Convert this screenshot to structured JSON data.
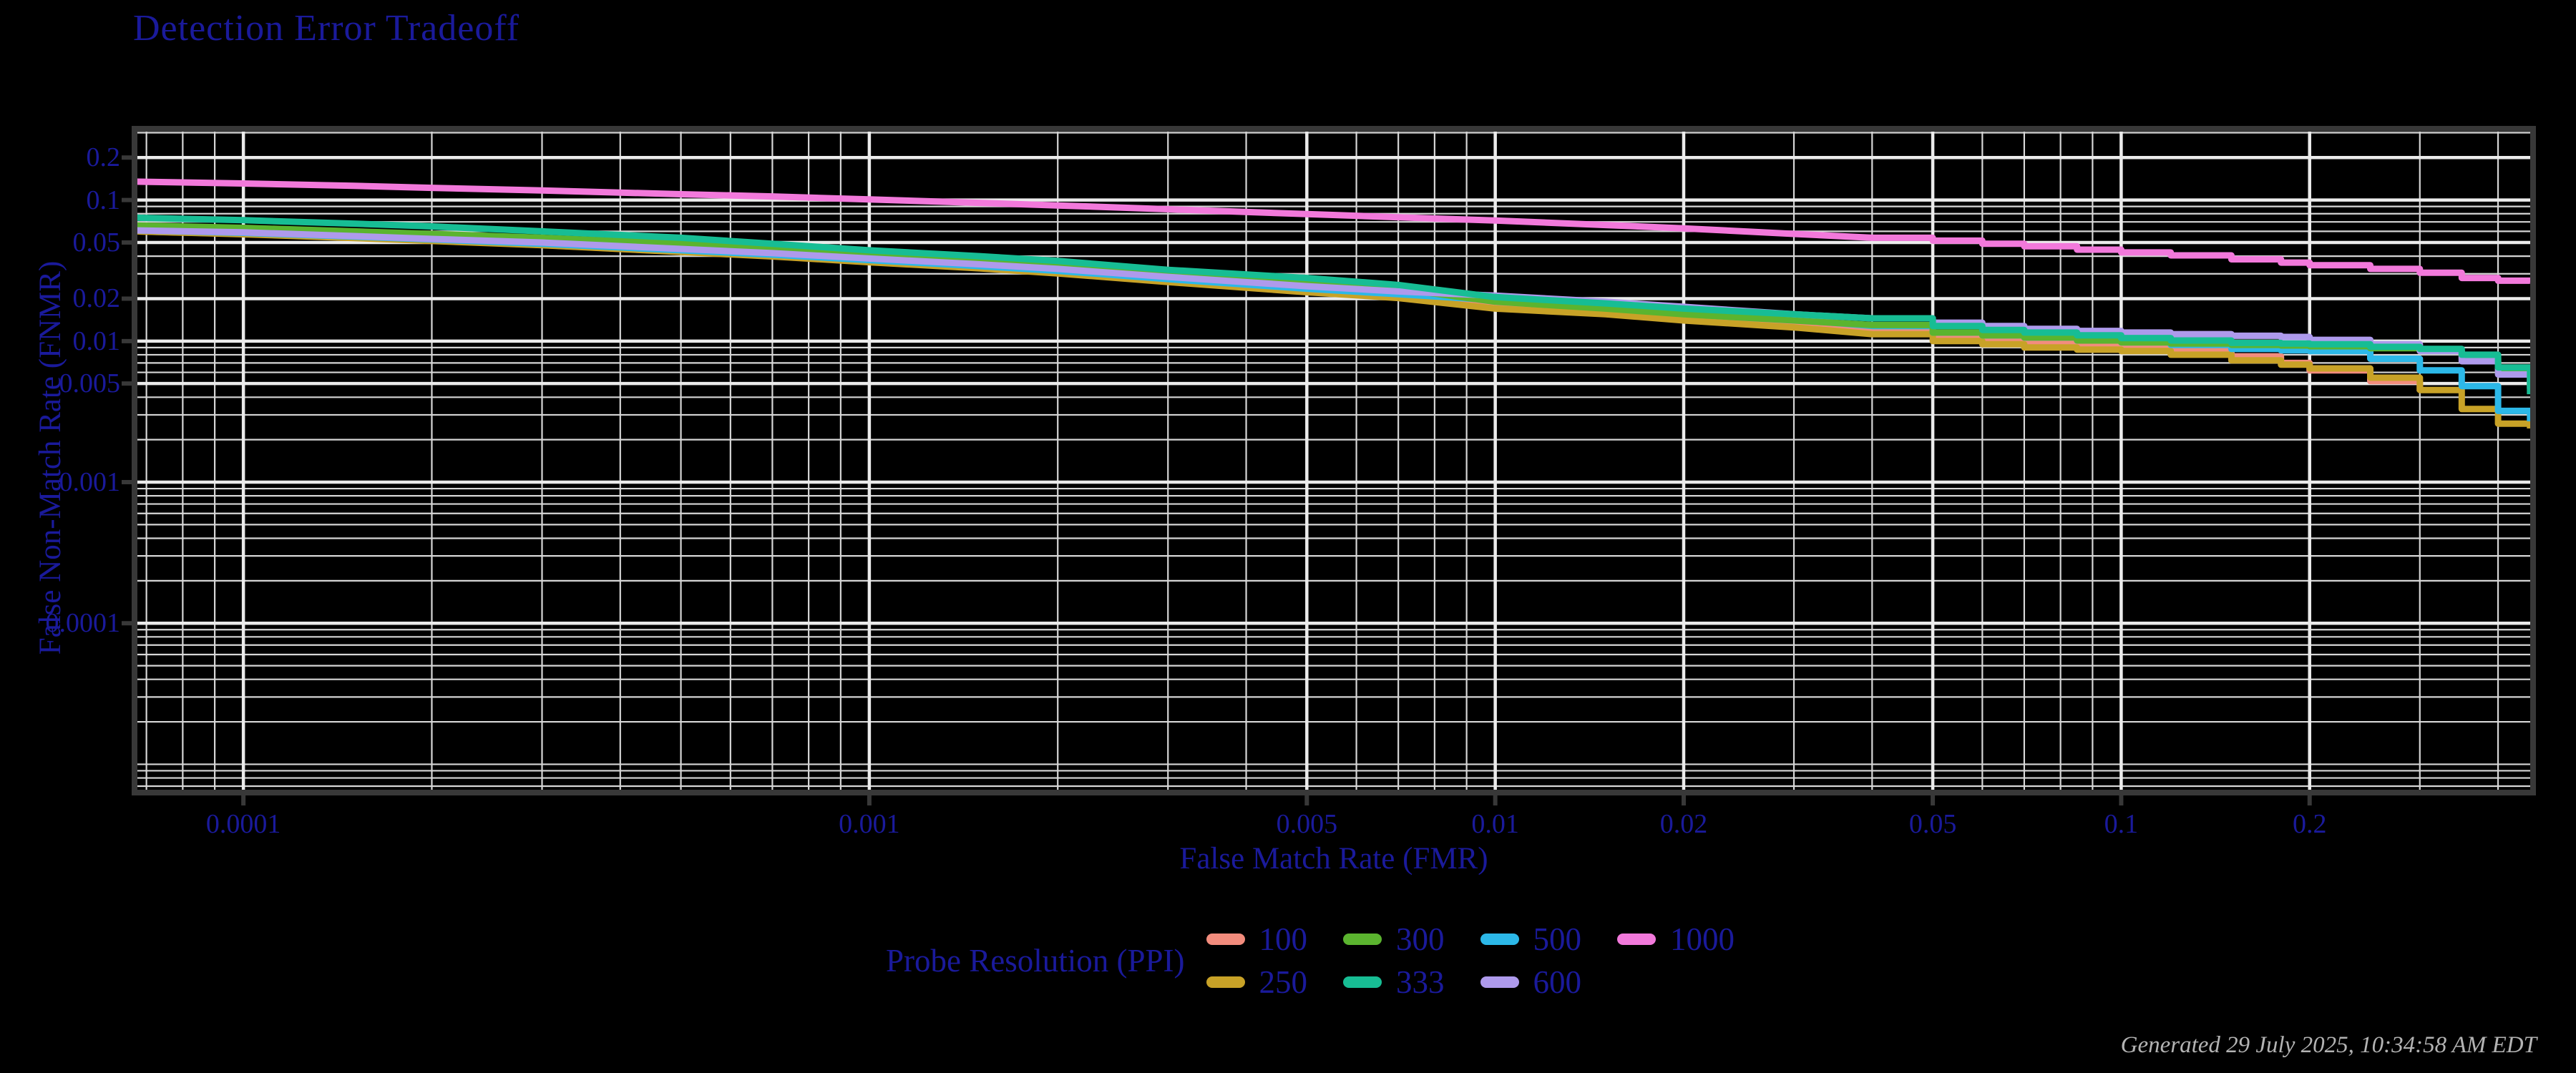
{
  "title": "Detection Error Tradeoff",
  "footer": {
    "generated": "Generated 29 July 2025, 10:34:58 AM EDT"
  },
  "colors": {
    "background": "#000000",
    "text": "#1A1A9B",
    "grid_major": "#EBEBEB",
    "grid_minor": "#D6D6D6",
    "spine": "#383838",
    "timestamp": "#B3B3B3"
  },
  "chart_data": {
    "type": "line",
    "title": "Detection Error Tradeoff",
    "xlabel": "False Match Rate (FMR)",
    "ylabel": "False Non-Match Rate (FNMR)",
    "legend_title": "Probe Resolution (PPI)",
    "legend_position": "bottom",
    "grid": "on",
    "x_scale": "log",
    "y_scale": "log",
    "xlim": [
      6.7e-05,
      0.455
    ],
    "ylim": [
      6.3e-06,
      0.32
    ],
    "x_ticks": [
      {
        "value": 0.0001,
        "label": "0.0001"
      },
      {
        "value": 0.001,
        "label": "0.001"
      },
      {
        "value": 0.005,
        "label": "0.005"
      },
      {
        "value": 0.01,
        "label": "0.01"
      },
      {
        "value": 0.02,
        "label": "0.02"
      },
      {
        "value": 0.05,
        "label": "0.05"
      },
      {
        "value": 0.1,
        "label": "0.1"
      },
      {
        "value": 0.2,
        "label": "0.2"
      }
    ],
    "y_ticks": [
      {
        "value": 0.2,
        "label": "0.2"
      },
      {
        "value": 0.1,
        "label": "0.1"
      },
      {
        "value": 0.05,
        "label": "0.05"
      },
      {
        "value": 0.02,
        "label": "0.02"
      },
      {
        "value": 0.01,
        "label": "0.01"
      },
      {
        "value": 0.005,
        "label": "0.005"
      },
      {
        "value": 0.001,
        "label": "0.001"
      },
      {
        "value": 0.0001,
        "label": "0.0001"
      }
    ],
    "x": [
      6.7e-05,
      0.0001,
      0.00015,
      0.0002,
      0.0003,
      0.0005,
      0.0007,
      0.001,
      0.0015,
      0.002,
      0.003,
      0.005,
      0.007,
      0.01,
      0.015,
      0.02,
      0.03,
      0.04,
      0.05,
      0.06,
      0.07,
      0.085,
      0.1,
      0.12,
      0.15,
      0.18,
      0.2,
      0.25,
      0.3,
      0.35,
      0.4,
      0.45
    ],
    "series": [
      {
        "name": "100",
        "color": "#F28C7D",
        "y": [
          0.06,
          0.0575,
          0.054,
          0.0515,
          0.048,
          0.043,
          0.04,
          0.0365,
          0.033,
          0.0305,
          0.0265,
          0.0225,
          0.0205,
          0.018,
          0.016,
          0.015,
          0.0132,
          0.012,
          0.011,
          0.0103,
          0.0097,
          0.0094,
          0.0092,
          0.0086,
          0.0078,
          0.007,
          0.0062,
          0.0052,
          0.0044,
          null,
          null,
          null
        ]
      },
      {
        "name": "250",
        "color": "#C8A227",
        "y": [
          0.06,
          0.0572,
          0.0538,
          0.0512,
          0.0478,
          0.0428,
          0.0398,
          0.0362,
          0.0328,
          0.0302,
          0.0262,
          0.0222,
          0.0202,
          0.017,
          0.0155,
          0.014,
          0.0125,
          0.0112,
          0.01,
          0.0095,
          0.009,
          0.0087,
          0.0085,
          0.008,
          0.0073,
          0.0068,
          0.0064,
          0.0055,
          0.0045,
          0.0033,
          0.0026,
          0.0024
        ]
      },
      {
        "name": "300",
        "color": "#5BB42F",
        "y": [
          0.066,
          0.0635,
          0.06,
          0.0575,
          0.054,
          0.049,
          0.0455,
          0.0415,
          0.038,
          0.0355,
          0.031,
          0.0265,
          0.0235,
          0.019,
          0.017,
          0.0155,
          0.014,
          0.013,
          0.0115,
          0.011,
          0.0106,
          0.0101,
          0.0098,
          0.0096,
          0.0094,
          0.0093,
          0.0092,
          0.0089,
          0.0085,
          0.0075,
          0.006,
          0.0048
        ]
      },
      {
        "name": "333",
        "color": "#17BD94",
        "y": [
          0.075,
          0.072,
          0.068,
          0.065,
          0.06,
          0.054,
          0.049,
          0.044,
          0.04,
          0.037,
          0.032,
          0.028,
          0.025,
          0.0205,
          0.0185,
          0.017,
          0.0155,
          0.0145,
          0.0128,
          0.012,
          0.0115,
          0.011,
          0.0105,
          0.0101,
          0.0097,
          0.0096,
          0.0095,
          0.0091,
          0.0088,
          0.008,
          0.0065,
          0.0042
        ]
      },
      {
        "name": "500",
        "color": "#2CB8E8",
        "y": [
          0.061,
          0.0585,
          0.055,
          0.0525,
          0.049,
          0.044,
          0.041,
          0.0375,
          0.034,
          0.0315,
          0.0275,
          0.0235,
          0.0215,
          0.0195,
          0.0175,
          0.016,
          0.0142,
          0.0128,
          0.0115,
          0.011,
          0.0106,
          0.0101,
          0.0098,
          0.0094,
          0.0088,
          0.0086,
          0.0085,
          0.0075,
          0.0062,
          0.0048,
          0.0032,
          0.0027
        ]
      },
      {
        "name": "600",
        "color": "#AE9AEC",
        "y": [
          0.061,
          0.059,
          0.0555,
          0.053,
          0.05,
          0.045,
          0.042,
          0.0385,
          0.035,
          0.0325,
          0.0285,
          0.0245,
          0.0225,
          0.021,
          0.019,
          0.0175,
          0.0155,
          0.0145,
          0.0135,
          0.0128,
          0.0122,
          0.0118,
          0.0115,
          0.0112,
          0.0109,
          0.0107,
          0.0102,
          0.0095,
          0.0085,
          0.0072,
          0.0058,
          0.0046
        ]
      },
      {
        "name": "1000",
        "color": "#F279DB",
        "y": [
          0.135,
          0.131,
          0.126,
          0.122,
          0.117,
          0.11,
          0.106,
          0.101,
          0.0955,
          0.0915,
          0.086,
          0.0795,
          0.0755,
          0.0715,
          0.0665,
          0.063,
          0.0575,
          0.054,
          0.0515,
          0.049,
          0.047,
          0.0445,
          0.0425,
          0.0405,
          0.038,
          0.036,
          0.0345,
          0.0325,
          0.0305,
          0.028,
          0.0268,
          0.026
        ]
      }
    ],
    "draw_order": [
      "100",
      "250",
      "500",
      "300",
      "600",
      "333",
      "1000"
    ]
  }
}
